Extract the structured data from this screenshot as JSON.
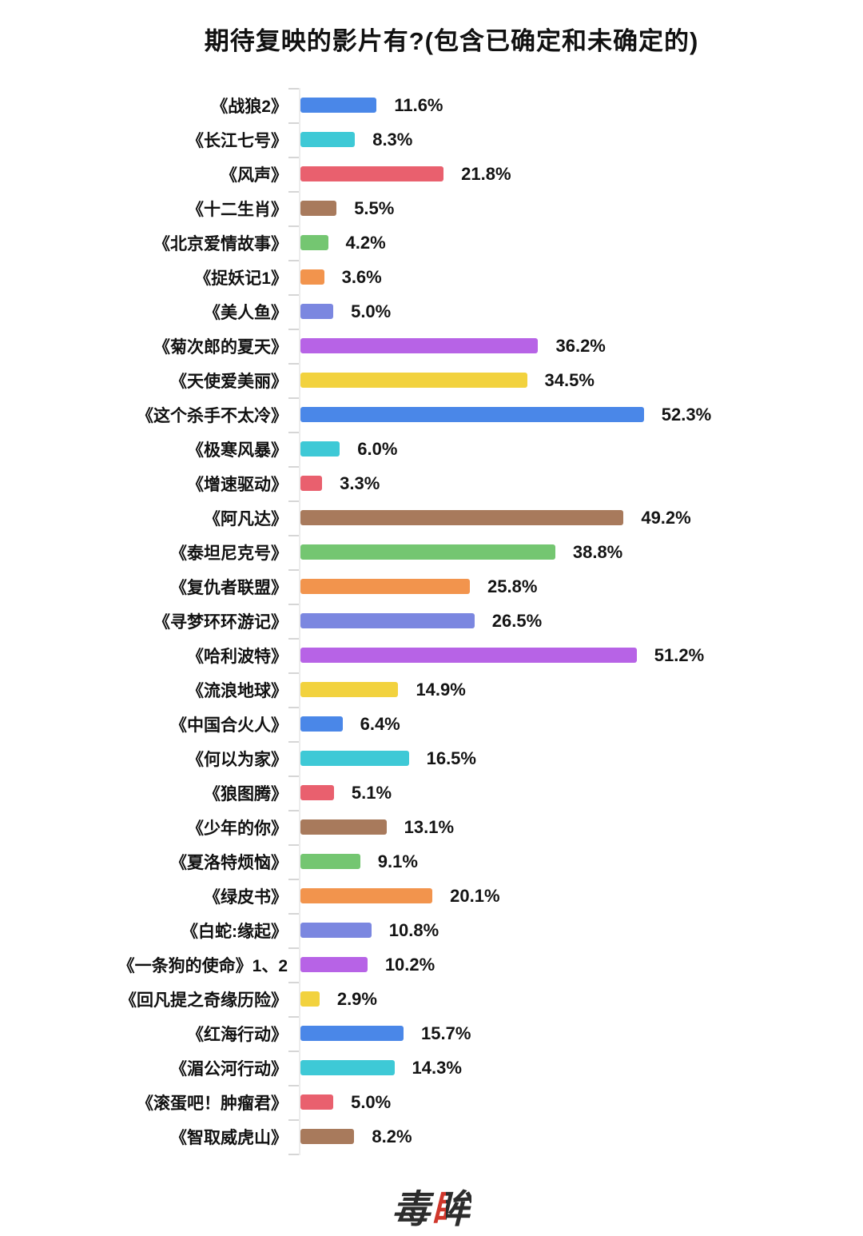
{
  "title": "期待复映的影片有?(包含已确定和未确定的)",
  "footer_logo": {
    "first_char": "毒",
    "second_char": "眸",
    "accent_color": "#d0372c"
  },
  "chart_data": {
    "type": "bar",
    "orientation": "horizontal",
    "title": "期待复映的影片有?(包含已确定和未确定的)",
    "xlabel": "",
    "ylabel": "",
    "value_suffix": "%",
    "xlim": [
      0,
      55
    ],
    "grid": false,
    "legend": false,
    "categories": [
      "《战狼2》",
      "《长江七号》",
      "《风声》",
      "《十二生肖》",
      "《北京爱情故事》",
      "《捉妖记1》",
      "《美人鱼》",
      "《菊次郎的夏天》",
      "《天使爱美丽》",
      "《这个杀手不太冷》",
      "《极寒风暴》",
      "《增速驱动》",
      "《阿凡达》",
      "《泰坦尼克号》",
      "《复仇者联盟》",
      "《寻梦环环游记》",
      "《哈利波特》",
      "《流浪地球》",
      "《中国合火人》",
      "《何以为家》",
      "《狼图腾》",
      "《少年的你》",
      "《夏洛特烦恼》",
      "《绿皮书》",
      "《白蛇:缘起》",
      "《一条狗的使命》1、2",
      "《回凡提之奇缘历险》",
      "《红海行动》",
      "《湄公河行动》",
      "《滚蛋吧！肿瘤君》",
      "《智取威虎山》"
    ],
    "values": [
      11.6,
      8.3,
      21.8,
      5.5,
      4.2,
      3.6,
      5.0,
      36.2,
      34.5,
      52.3,
      6.0,
      3.3,
      49.2,
      38.8,
      25.8,
      26.5,
      51.2,
      14.9,
      6.4,
      16.5,
      5.1,
      13.1,
      9.1,
      20.1,
      10.8,
      10.2,
      2.9,
      15.7,
      14.3,
      5.0,
      8.2
    ],
    "bar_colors_cycle": [
      "#4a87e8",
      "#3ec9d6",
      "#e9606e",
      "#a87a5c",
      "#74c671",
      "#f2944d",
      "#7b87e0",
      "#b763e6",
      "#f2d23e"
    ]
  }
}
